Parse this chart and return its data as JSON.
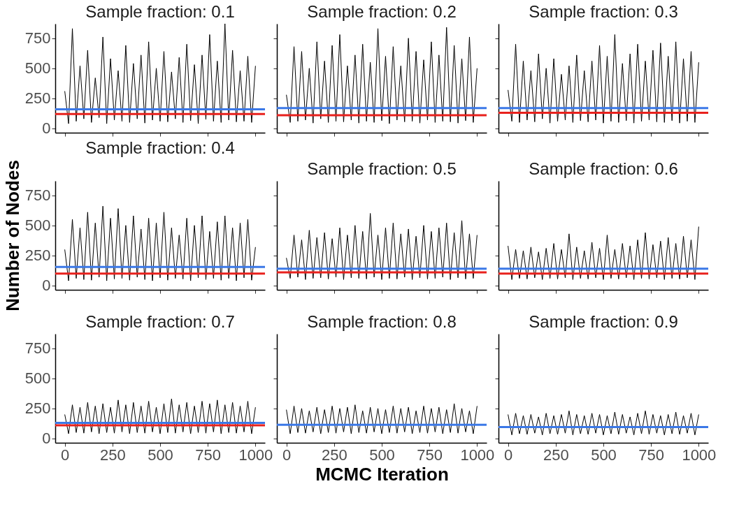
{
  "chart_data": [
    {
      "type": "line",
      "title": "Sample fraction: 0.1",
      "tick_labels": "y",
      "xlim": [
        -50,
        1050
      ],
      "ylim": [
        -35,
        870
      ],
      "xticks": [
        0,
        250,
        500,
        750,
        1000
      ],
      "yticks": [
        0,
        250,
        500,
        750
      ],
      "grid": false,
      "legend": false,
      "x": [
        0,
        20,
        40,
        60,
        80,
        100,
        120,
        140,
        160,
        180,
        200,
        220,
        240,
        260,
        280,
        300,
        320,
        340,
        360,
        380,
        400,
        420,
        440,
        460,
        480,
        500,
        520,
        540,
        560,
        580,
        600,
        620,
        640,
        660,
        680,
        700,
        720,
        740,
        760,
        780,
        800,
        820,
        840,
        860,
        880,
        900,
        920,
        940,
        960,
        980,
        1000
      ],
      "series": [
        {
          "color": "#000000",
          "values": [
            310,
            40,
            830,
            60,
            520,
            80,
            650,
            50,
            420,
            90,
            760,
            40,
            580,
            70,
            480,
            60,
            690,
            50,
            540,
            80,
            610,
            45,
            720,
            70,
            500,
            60,
            640,
            55,
            470,
            80,
            590,
            50,
            700,
            65,
            530,
            40,
            610,
            75,
            780,
            60,
            560,
            50,
            870,
            70,
            650,
            55,
            480,
            60,
            600,
            50,
            520
          ]
        }
      ],
      "ref_lines": [
        {
          "axis": "y",
          "value": 160,
          "color": "#3b78e7"
        },
        {
          "axis": "y",
          "value": 120,
          "color": "#e8211d"
        }
      ]
    },
    {
      "type": "line",
      "title": "Sample fraction: 0.2",
      "tick_labels": false,
      "xlim": [
        -50,
        1050
      ],
      "ylim": [
        -35,
        870
      ],
      "xticks": [
        0,
        250,
        500,
        750,
        1000
      ],
      "yticks": [
        0,
        250,
        500,
        750
      ],
      "grid": false,
      "legend": false,
      "x": [
        0,
        20,
        40,
        60,
        80,
        100,
        120,
        140,
        160,
        180,
        200,
        220,
        240,
        260,
        280,
        300,
        320,
        340,
        360,
        380,
        400,
        420,
        440,
        460,
        480,
        500,
        520,
        540,
        560,
        580,
        600,
        620,
        640,
        660,
        680,
        700,
        720,
        740,
        760,
        780,
        800,
        820,
        840,
        860,
        880,
        900,
        920,
        940,
        960,
        980,
        1000
      ],
      "series": [
        {
          "color": "#000000",
          "values": [
            280,
            50,
            680,
            60,
            640,
            70,
            500,
            45,
            720,
            80,
            560,
            50,
            690,
            60,
            780,
            55,
            520,
            70,
            610,
            45,
            700,
            60,
            550,
            50,
            830,
            65,
            600,
            40,
            680,
            70,
            520,
            55,
            750,
            60,
            640,
            45,
            570,
            70,
            720,
            50,
            610,
            60,
            840,
            55,
            690,
            45,
            580,
            65,
            760,
            50,
            500
          ]
        }
      ],
      "ref_lines": [
        {
          "axis": "y",
          "value": 170,
          "color": "#3b78e7"
        },
        {
          "axis": "y",
          "value": 110,
          "color": "#e8211d"
        }
      ]
    },
    {
      "type": "line",
      "title": "Sample fraction: 0.3",
      "tick_labels": false,
      "xlim": [
        -50,
        1050
      ],
      "ylim": [
        -35,
        870
      ],
      "xticks": [
        0,
        250,
        500,
        750,
        1000
      ],
      "yticks": [
        0,
        250,
        500,
        750
      ],
      "grid": false,
      "legend": false,
      "x": [
        0,
        20,
        40,
        60,
        80,
        100,
        120,
        140,
        160,
        180,
        200,
        220,
        240,
        260,
        280,
        300,
        320,
        340,
        360,
        380,
        400,
        420,
        440,
        460,
        480,
        500,
        520,
        540,
        560,
        580,
        600,
        620,
        640,
        660,
        680,
        700,
        720,
        740,
        760,
        780,
        800,
        820,
        840,
        860,
        880,
        900,
        920,
        940,
        960,
        980,
        1000
      ],
      "series": [
        {
          "color": "#000000",
          "values": [
            320,
            60,
            700,
            50,
            560,
            70,
            480,
            55,
            620,
            80,
            500,
            45,
            580,
            60,
            450,
            70,
            520,
            50,
            610,
            65,
            480,
            55,
            560,
            70,
            690,
            45,
            600,
            60,
            780,
            50,
            540,
            65,
            620,
            45,
            700,
            60,
            560,
            70,
            650,
            55,
            710,
            50,
            600,
            65,
            720,
            45,
            580,
            60,
            640,
            50,
            550
          ]
        }
      ],
      "ref_lines": [
        {
          "axis": "y",
          "value": 170,
          "color": "#3b78e7"
        },
        {
          "axis": "y",
          "value": 130,
          "color": "#e8211d"
        }
      ]
    },
    {
      "type": "line",
      "title": "Sample fraction: 0.4",
      "ylabel": "Number of Nodes",
      "tick_labels": "y",
      "xlim": [
        -50,
        1050
      ],
      "ylim": [
        -35,
        870
      ],
      "xticks": [
        0,
        250,
        500,
        750,
        1000
      ],
      "yticks": [
        0,
        250,
        500,
        750
      ],
      "grid": false,
      "legend": false,
      "x": [
        0,
        20,
        40,
        60,
        80,
        100,
        120,
        140,
        160,
        180,
        200,
        220,
        240,
        260,
        280,
        300,
        320,
        340,
        360,
        380,
        400,
        420,
        440,
        460,
        480,
        500,
        520,
        540,
        560,
        580,
        600,
        620,
        640,
        660,
        680,
        700,
        720,
        740,
        760,
        780,
        800,
        820,
        840,
        860,
        880,
        900,
        920,
        940,
        960,
        980,
        1000
      ],
      "series": [
        {
          "color": "#000000",
          "values": [
            300,
            40,
            550,
            60,
            480,
            50,
            610,
            45,
            520,
            70,
            660,
            40,
            560,
            55,
            640,
            60,
            500,
            45,
            580,
            70,
            470,
            50,
            560,
            40,
            520,
            65,
            610,
            45,
            480,
            60,
            420,
            55,
            560,
            40,
            500,
            65,
            580,
            50,
            450,
            60,
            530,
            45,
            580,
            60,
            480,
            40,
            520,
            65,
            550,
            45,
            320
          ]
        }
      ],
      "ref_lines": [
        {
          "axis": "y",
          "value": 155,
          "color": "#3b78e7"
        },
        {
          "axis": "y",
          "value": 100,
          "color": "#e8211d"
        }
      ]
    },
    {
      "type": "line",
      "title": "Sample fraction: 0.5",
      "tick_labels": false,
      "xlim": [
        -50,
        1050
      ],
      "ylim": [
        -35,
        870
      ],
      "xticks": [
        0,
        250,
        500,
        750,
        1000
      ],
      "yticks": [
        0,
        250,
        500,
        750
      ],
      "grid": false,
      "legend": false,
      "x": [
        0,
        20,
        40,
        60,
        80,
        100,
        120,
        140,
        160,
        180,
        200,
        220,
        240,
        260,
        280,
        300,
        320,
        340,
        360,
        380,
        400,
        420,
        440,
        460,
        480,
        500,
        520,
        540,
        560,
        580,
        600,
        620,
        640,
        660,
        680,
        700,
        720,
        740,
        760,
        780,
        800,
        820,
        840,
        860,
        880,
        900,
        920,
        940,
        960,
        980,
        1000
      ],
      "series": [
        {
          "color": "#000000",
          "values": [
            230,
            60,
            420,
            70,
            380,
            50,
            460,
            60,
            400,
            65,
            440,
            55,
            390,
            70,
            480,
            50,
            420,
            65,
            500,
            60,
            450,
            55,
            600,
            70,
            420,
            50,
            480,
            60,
            520,
            55,
            430,
            70,
            470,
            50,
            410,
            65,
            500,
            55,
            450,
            60,
            480,
            70,
            520,
            50,
            440,
            65,
            540,
            55,
            430,
            60,
            420
          ]
        }
      ],
      "ref_lines": [
        {
          "axis": "y",
          "value": 140,
          "color": "#3b78e7"
        },
        {
          "axis": "y",
          "value": 110,
          "color": "#e8211d"
        }
      ]
    },
    {
      "type": "line",
      "title": "Sample fraction: 0.6",
      "tick_labels": false,
      "xlim": [
        -50,
        1050
      ],
      "ylim": [
        -35,
        870
      ],
      "xticks": [
        0,
        250,
        500,
        750,
        1000
      ],
      "yticks": [
        0,
        250,
        500,
        750
      ],
      "grid": false,
      "legend": false,
      "x": [
        0,
        20,
        40,
        60,
        80,
        100,
        120,
        140,
        160,
        180,
        200,
        220,
        240,
        260,
        280,
        300,
        320,
        340,
        360,
        380,
        400,
        420,
        440,
        460,
        480,
        500,
        520,
        540,
        560,
        580,
        600,
        620,
        640,
        660,
        680,
        700,
        720,
        740,
        760,
        780,
        800,
        820,
        840,
        860,
        880,
        900,
        920,
        940,
        960,
        980,
        1000
      ],
      "series": [
        {
          "color": "#000000",
          "values": [
            330,
            50,
            300,
            60,
            290,
            55,
            320,
            65,
            280,
            50,
            310,
            60,
            350,
            55,
            300,
            65,
            430,
            50,
            320,
            60,
            290,
            55,
            360,
            65,
            310,
            50,
            420,
            60,
            300,
            55,
            350,
            65,
            330,
            50,
            380,
            60,
            440,
            55,
            340,
            65,
            370,
            50,
            400,
            60,
            350,
            55,
            410,
            65,
            380,
            50,
            490
          ]
        }
      ],
      "ref_lines": [
        {
          "axis": "y",
          "value": 140,
          "color": "#3b78e7"
        },
        {
          "axis": "y",
          "value": 100,
          "color": "#e8211d"
        }
      ]
    },
    {
      "type": "line",
      "title": "Sample fraction: 0.7",
      "xlim": [
        -50,
        1050
      ],
      "ylim": [
        -35,
        870
      ],
      "xticks": [
        0,
        250,
        500,
        750,
        1000
      ],
      "yticks": [
        0,
        250,
        500,
        750
      ],
      "grid": false,
      "legend": false,
      "x": [
        0,
        20,
        40,
        60,
        80,
        100,
        120,
        140,
        160,
        180,
        200,
        220,
        240,
        260,
        280,
        300,
        320,
        340,
        360,
        380,
        400,
        420,
        440,
        460,
        480,
        500,
        520,
        540,
        560,
        580,
        600,
        620,
        640,
        660,
        680,
        700,
        720,
        740,
        760,
        780,
        800,
        820,
        840,
        860,
        880,
        900,
        920,
        940,
        960,
        980,
        1000
      ],
      "series": [
        {
          "color": "#000000",
          "values": [
            200,
            40,
            280,
            50,
            260,
            45,
            300,
            55,
            270,
            40,
            290,
            50,
            260,
            45,
            320,
            55,
            280,
            40,
            300,
            50,
            270,
            45,
            310,
            55,
            260,
            40,
            290,
            50,
            330,
            45,
            280,
            55,
            300,
            40,
            270,
            50,
            310,
            45,
            290,
            55,
            320,
            40,
            280,
            50,
            300,
            45,
            270,
            55,
            310,
            40,
            260
          ]
        }
      ],
      "ref_lines": [
        {
          "axis": "y",
          "value": 130,
          "color": "#3b78e7"
        },
        {
          "axis": "y",
          "value": 110,
          "color": "#e8211d"
        }
      ]
    },
    {
      "type": "line",
      "title": "Sample fraction: 0.8",
      "xlabel": "MCMC Iteration",
      "tick_labels": "x",
      "xlim": [
        -50,
        1050
      ],
      "ylim": [
        -35,
        870
      ],
      "xticks": [
        0,
        250,
        500,
        750,
        1000
      ],
      "yticks": [
        0,
        250,
        500,
        750
      ],
      "grid": false,
      "legend": false,
      "x": [
        0,
        20,
        40,
        60,
        80,
        100,
        120,
        140,
        160,
        180,
        200,
        220,
        240,
        260,
        280,
        300,
        320,
        340,
        360,
        380,
        400,
        420,
        440,
        460,
        480,
        500,
        520,
        540,
        560,
        580,
        600,
        620,
        640,
        660,
        680,
        700,
        720,
        740,
        760,
        780,
        800,
        820,
        840,
        860,
        880,
        900,
        920,
        940,
        960,
        980,
        1000
      ],
      "series": [
        {
          "color": "#000000",
          "values": [
            240,
            40,
            270,
            50,
            250,
            45,
            230,
            55,
            260,
            40,
            240,
            50,
            270,
            45,
            250,
            55,
            260,
            40,
            280,
            50,
            230,
            45,
            260,
            55,
            250,
            40,
            240,
            50,
            270,
            45,
            250,
            55,
            260,
            40,
            230,
            50,
            270,
            45,
            250,
            55,
            260,
            40,
            240,
            50,
            290,
            45,
            250,
            55,
            230,
            40,
            270
          ]
        }
      ],
      "ref_lines": [
        {
          "axis": "y",
          "value": 115,
          "color": "#3b78e7"
        }
      ]
    },
    {
      "type": "line",
      "title": "Sample fraction: 0.9",
      "tick_labels": "x",
      "xlim": [
        -50,
        1050
      ],
      "ylim": [
        -35,
        870
      ],
      "xticks": [
        0,
        250,
        500,
        750,
        1000
      ],
      "yticks": [
        0,
        250,
        500,
        750
      ],
      "grid": false,
      "legend": false,
      "x": [
        0,
        20,
        40,
        60,
        80,
        100,
        120,
        140,
        160,
        180,
        200,
        220,
        240,
        260,
        280,
        300,
        320,
        340,
        360,
        380,
        400,
        420,
        440,
        460,
        480,
        500,
        520,
        540,
        560,
        580,
        600,
        620,
        640,
        660,
        680,
        700,
        720,
        740,
        760,
        780,
        800,
        820,
        840,
        860,
        880,
        900,
        920,
        940,
        960,
        980,
        1000
      ],
      "series": [
        {
          "color": "#000000",
          "values": [
            200,
            30,
            210,
            40,
            190,
            35,
            200,
            45,
            180,
            30,
            210,
            40,
            190,
            35,
            200,
            45,
            230,
            30,
            200,
            40,
            190,
            35,
            210,
            45,
            200,
            30,
            190,
            40,
            220,
            35,
            200,
            45,
            180,
            30,
            210,
            40,
            230,
            35,
            200,
            45,
            190,
            30,
            200,
            40,
            220,
            35,
            190,
            45,
            210,
            30,
            200
          ]
        }
      ],
      "ref_lines": [
        {
          "axis": "y",
          "value": 95,
          "color": "#3b78e7"
        }
      ]
    }
  ]
}
